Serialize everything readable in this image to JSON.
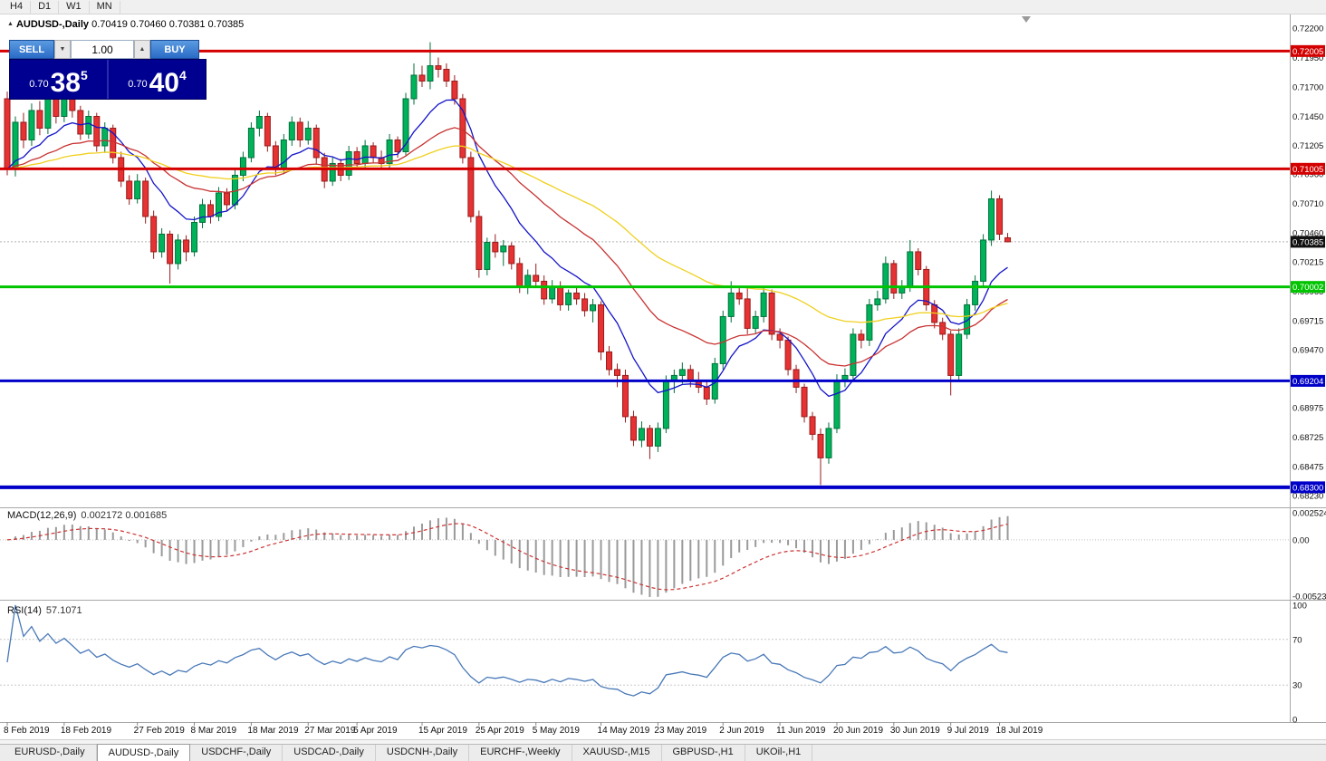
{
  "toolbar": {
    "timeframes": [
      "H4",
      "D1",
      "W1",
      "MN"
    ]
  },
  "chart_header": {
    "symbol": "AUDUSD-,Daily",
    "ohlc": "0.70419 0.70460 0.70381 0.70385"
  },
  "icons": {
    "symbol_marker": "▲",
    "spin_up": "▲",
    "spin_down": "▼",
    "chart_shift_marker": "▼"
  },
  "trade_panel": {
    "sell_label": "SELL",
    "buy_label": "BUY",
    "volume": "1.00",
    "sell_price": {
      "base": "0.70",
      "big": "38",
      "sup": "5"
    },
    "buy_price": {
      "base": "0.70",
      "big": "40",
      "sup": "4"
    },
    "panel_color": "#000090",
    "button_color": "#2a6bc8"
  },
  "indicators": {
    "macd": {
      "label": "MACD(12,26,9)",
      "values": "0.002172 0.001685"
    },
    "rsi": {
      "label": "RSI(14)",
      "value": "57.1071"
    }
  },
  "tabs": [
    {
      "label": "EURUSD-,Daily",
      "active": false
    },
    {
      "label": "AUDUSD-,Daily",
      "active": true
    },
    {
      "label": "USDCHF-,Daily",
      "active": false
    },
    {
      "label": "USDCAD-,Daily",
      "active": false
    },
    {
      "label": "USDCNH-,Daily",
      "active": false
    },
    {
      "label": "EURCHF-,Weekly",
      "active": false
    },
    {
      "label": "XAUUSD-,M15",
      "active": false
    },
    {
      "label": "GBPUSD-,H1",
      "active": false
    },
    {
      "label": "UKOil-,H1",
      "active": false
    }
  ],
  "chart_data": {
    "type": "candlestick",
    "symbol": "AUDUSD-",
    "timeframe": "Daily",
    "current_price": 0.70385,
    "current_price_label": "0.70385",
    "price_axis_labels": [
      "0.72200",
      "0.71950",
      "0.71700",
      "0.71450",
      "0.71205",
      "0.70960",
      "0.70710",
      "0.70460",
      "0.70215",
      "0.69965",
      "0.69715",
      "0.69470",
      "0.69220",
      "0.68975",
      "0.68725",
      "0.68475",
      "0.68230"
    ],
    "hlines": [
      {
        "price": 0.72005,
        "label": "0.72005",
        "color": "#d40000",
        "width": 3
      },
      {
        "price": 0.71005,
        "label": "0.71005",
        "color": "#d40000",
        "width": 3
      },
      {
        "price": 0.70002,
        "label": "0.70002",
        "color": "#00c400",
        "width": 3
      },
      {
        "price": 0.69204,
        "label": "0.69204",
        "color": "#0000c8",
        "width": 3
      },
      {
        "price": 0.683,
        "label": "0.68300",
        "color": "#0000c8",
        "width": 4
      }
    ],
    "candle_colors": {
      "up_fill": "#00b35a",
      "up_stroke": "#00703a",
      "down_fill": "#e63232",
      "down_stroke": "#991b1b"
    },
    "moving_averages": [
      {
        "type": "ema",
        "period": 10,
        "color": "#1414c8"
      },
      {
        "type": "ema",
        "period": 26,
        "color": "#c83232"
      },
      {
        "type": "ema",
        "period": 55,
        "color": "#f0d01e"
      }
    ],
    "marker": {
      "bar": 90,
      "price": 0.6994,
      "glyph": "+",
      "color": "#cc2222"
    },
    "date_ticks": [
      [
        0,
        "8 Feb 2019"
      ],
      [
        7,
        "18 Feb 2019"
      ],
      [
        16,
        "27 Feb 2019"
      ],
      [
        23,
        "8 Mar 2019"
      ],
      [
        30,
        "18 Mar 2019"
      ],
      [
        37,
        "27 Mar 2019"
      ],
      [
        43,
        "5 Apr 2019"
      ],
      [
        51,
        "15 Apr 2019"
      ],
      [
        58,
        "25 Apr 2019"
      ],
      [
        65,
        "5 May 2019"
      ],
      [
        73,
        "14 May 2019"
      ],
      [
        80,
        "23 May 2019"
      ],
      [
        88,
        "2 Jun 2019"
      ],
      [
        95,
        "11 Jun 2019"
      ],
      [
        102,
        "20 Jun 2019"
      ],
      [
        109,
        "30 Jun 2019"
      ],
      [
        116,
        "9 Jul 2019"
      ],
      [
        122,
        "18 Jul 2019"
      ]
    ],
    "candles": [
      [
        0.716,
        0.7166,
        0.7095,
        0.71
      ],
      [
        0.71,
        0.7145,
        0.7094,
        0.714
      ],
      [
        0.714,
        0.7148,
        0.7118,
        0.7125
      ],
      [
        0.7125,
        0.7156,
        0.712,
        0.715
      ],
      [
        0.715,
        0.7158,
        0.7129,
        0.7135
      ],
      [
        0.7135,
        0.7165,
        0.713,
        0.716
      ],
      [
        0.716,
        0.7167,
        0.7139,
        0.7145
      ],
      [
        0.7145,
        0.717,
        0.714,
        0.7165
      ],
      [
        0.7165,
        0.7169,
        0.7144,
        0.715
      ],
      [
        0.715,
        0.7154,
        0.7125,
        0.713
      ],
      [
        0.713,
        0.715,
        0.7126,
        0.7145
      ],
      [
        0.7145,
        0.7148,
        0.7115,
        0.712
      ],
      [
        0.712,
        0.714,
        0.7114,
        0.7135
      ],
      [
        0.7135,
        0.7138,
        0.7105,
        0.711
      ],
      [
        0.711,
        0.7115,
        0.7085,
        0.709
      ],
      [
        0.709,
        0.7095,
        0.707,
        0.7075
      ],
      [
        0.7075,
        0.7096,
        0.7071,
        0.709
      ],
      [
        0.709,
        0.7093,
        0.7054,
        0.706
      ],
      [
        0.706,
        0.7065,
        0.7024,
        0.703
      ],
      [
        0.703,
        0.705,
        0.7025,
        0.7045
      ],
      [
        0.7045,
        0.7048,
        0.7003,
        0.702
      ],
      [
        0.702,
        0.7045,
        0.7015,
        0.704
      ],
      [
        0.704,
        0.7044,
        0.7022,
        0.703
      ],
      [
        0.703,
        0.706,
        0.7026,
        0.7055
      ],
      [
        0.7055,
        0.7075,
        0.705,
        0.707
      ],
      [
        0.707,
        0.7074,
        0.7054,
        0.706
      ],
      [
        0.706,
        0.7085,
        0.7056,
        0.708
      ],
      [
        0.708,
        0.7084,
        0.7065,
        0.707
      ],
      [
        0.707,
        0.71,
        0.7066,
        0.7095
      ],
      [
        0.7095,
        0.7115,
        0.709,
        0.711
      ],
      [
        0.711,
        0.714,
        0.7106,
        0.7135
      ],
      [
        0.7135,
        0.715,
        0.7128,
        0.7145
      ],
      [
        0.7145,
        0.7148,
        0.7115,
        0.712
      ],
      [
        0.712,
        0.7124,
        0.7095,
        0.71
      ],
      [
        0.71,
        0.713,
        0.7096,
        0.7125
      ],
      [
        0.7125,
        0.7145,
        0.712,
        0.714
      ],
      [
        0.714,
        0.7144,
        0.7119,
        0.7125
      ],
      [
        0.7125,
        0.7141,
        0.7121,
        0.7135
      ],
      [
        0.7135,
        0.7138,
        0.7104,
        0.711
      ],
      [
        0.711,
        0.7114,
        0.7084,
        0.709
      ],
      [
        0.709,
        0.711,
        0.7086,
        0.7105
      ],
      [
        0.7105,
        0.7109,
        0.709,
        0.7095
      ],
      [
        0.7095,
        0.712,
        0.7091,
        0.7115
      ],
      [
        0.7115,
        0.7119,
        0.71,
        0.7105
      ],
      [
        0.7105,
        0.7125,
        0.7101,
        0.712
      ],
      [
        0.712,
        0.7123,
        0.7105,
        0.711
      ],
      [
        0.711,
        0.7116,
        0.71,
        0.7105
      ],
      [
        0.7105,
        0.713,
        0.7101,
        0.7125
      ],
      [
        0.7125,
        0.7128,
        0.711,
        0.7115
      ],
      [
        0.7115,
        0.7165,
        0.7112,
        0.716
      ],
      [
        0.716,
        0.719,
        0.7155,
        0.718
      ],
      [
        0.718,
        0.7188,
        0.717,
        0.7175
      ],
      [
        0.7175,
        0.7208,
        0.7168,
        0.7188
      ],
      [
        0.7188,
        0.7195,
        0.7178,
        0.7185
      ],
      [
        0.7185,
        0.719,
        0.717,
        0.7175
      ],
      [
        0.7175,
        0.718,
        0.7155,
        0.716
      ],
      [
        0.716,
        0.7164,
        0.7105,
        0.711
      ],
      [
        0.711,
        0.7115,
        0.7055,
        0.706
      ],
      [
        0.706,
        0.7065,
        0.7008,
        0.7015
      ],
      [
        0.7015,
        0.7042,
        0.701,
        0.7038
      ],
      [
        0.7038,
        0.7045,
        0.7025,
        0.703
      ],
      [
        0.703,
        0.704,
        0.7018,
        0.7035
      ],
      [
        0.7035,
        0.7038,
        0.7015,
        0.702
      ],
      [
        0.702,
        0.7025,
        0.6995,
        0.7
      ],
      [
        0.7,
        0.7015,
        0.6994,
        0.701
      ],
      [
        0.701,
        0.702,
        0.7,
        0.7005
      ],
      [
        0.7005,
        0.701,
        0.6985,
        0.699
      ],
      [
        0.699,
        0.7006,
        0.6986,
        0.7
      ],
      [
        0.7,
        0.7005,
        0.698,
        0.6985
      ],
      [
        0.6985,
        0.6998,
        0.698,
        0.6995
      ],
      [
        0.6995,
        0.7,
        0.6985,
        0.699
      ],
      [
        0.699,
        0.6995,
        0.6975,
        0.698
      ],
      [
        0.698,
        0.699,
        0.697,
        0.6985
      ],
      [
        0.6985,
        0.6988,
        0.6938,
        0.6945
      ],
      [
        0.6945,
        0.695,
        0.6925,
        0.693
      ],
      [
        0.693,
        0.6935,
        0.6915,
        0.6925
      ],
      [
        0.6925,
        0.693,
        0.6885,
        0.689
      ],
      [
        0.689,
        0.6895,
        0.6865,
        0.687
      ],
      [
        0.687,
        0.6886,
        0.6864,
        0.688
      ],
      [
        0.688,
        0.6883,
        0.6854,
        0.6865
      ],
      [
        0.6865,
        0.6885,
        0.686,
        0.688
      ],
      [
        0.688,
        0.6925,
        0.6876,
        0.692
      ],
      [
        0.692,
        0.693,
        0.691,
        0.6925
      ],
      [
        0.6925,
        0.6936,
        0.6918,
        0.693
      ],
      [
        0.693,
        0.6934,
        0.6915,
        0.692
      ],
      [
        0.692,
        0.6928,
        0.691,
        0.6915
      ],
      [
        0.6915,
        0.692,
        0.69,
        0.6905
      ],
      [
        0.6905,
        0.694,
        0.6901,
        0.6935
      ],
      [
        0.6935,
        0.698,
        0.693,
        0.6975
      ],
      [
        0.6975,
        0.7005,
        0.697,
        0.6995
      ],
      [
        0.6995,
        0.7,
        0.6985,
        0.699
      ],
      [
        0.699,
        0.6999,
        0.696,
        0.6965
      ],
      [
        0.6965,
        0.698,
        0.6961,
        0.6975
      ],
      [
        0.6975,
        0.7,
        0.697,
        0.6995
      ],
      [
        0.6995,
        0.6998,
        0.6955,
        0.696
      ],
      [
        0.696,
        0.6965,
        0.6948,
        0.6955
      ],
      [
        0.6955,
        0.6958,
        0.6925,
        0.693
      ],
      [
        0.693,
        0.6934,
        0.691,
        0.6915
      ],
      [
        0.6915,
        0.6918,
        0.6885,
        0.689
      ],
      [
        0.689,
        0.6894,
        0.687,
        0.6875
      ],
      [
        0.6875,
        0.688,
        0.6832,
        0.6855
      ],
      [
        0.6855,
        0.6885,
        0.685,
        0.688
      ],
      [
        0.688,
        0.6926,
        0.6876,
        0.692
      ],
      [
        0.692,
        0.6931,
        0.6915,
        0.6925
      ],
      [
        0.6925,
        0.6965,
        0.692,
        0.696
      ],
      [
        0.696,
        0.6964,
        0.6948,
        0.6955
      ],
      [
        0.6955,
        0.699,
        0.695,
        0.6985
      ],
      [
        0.6985,
        0.6997,
        0.698,
        0.699
      ],
      [
        0.699,
        0.7026,
        0.6986,
        0.702
      ],
      [
        0.702,
        0.7023,
        0.699,
        0.6995
      ],
      [
        0.6995,
        0.7006,
        0.699,
        0.7
      ],
      [
        0.7,
        0.704,
        0.6996,
        0.703
      ],
      [
        0.703,
        0.7033,
        0.701,
        0.7015
      ],
      [
        0.7015,
        0.7018,
        0.698,
        0.6985
      ],
      [
        0.6985,
        0.6989,
        0.6965,
        0.697
      ],
      [
        0.697,
        0.6974,
        0.6955,
        0.696
      ],
      [
        0.696,
        0.6963,
        0.6908,
        0.6925
      ],
      [
        0.6925,
        0.6965,
        0.692,
        0.696
      ],
      [
        0.696,
        0.699,
        0.6956,
        0.6985
      ],
      [
        0.6985,
        0.701,
        0.698,
        0.7005
      ],
      [
        0.7005,
        0.7045,
        0.7,
        0.704
      ],
      [
        0.704,
        0.7082,
        0.7035,
        0.7075
      ],
      [
        0.7075,
        0.7078,
        0.704,
        0.7045
      ],
      [
        0.70419,
        0.7046,
        0.70381,
        0.70385
      ]
    ],
    "macd": {
      "fast": 12,
      "slow": 26,
      "signal": 9,
      "hist_color": "#9a9a9a",
      "signal_color": "#cc3333",
      "axis_ticks": [
        [
          0.002524,
          "0.002524"
        ],
        [
          0,
          "0.00"
        ],
        [
          -0.005234,
          "-0.005234"
        ]
      ]
    },
    "rsi": {
      "period": 14,
      "color": "#4878b8",
      "levels": [
        70,
        30
      ],
      "axis_ticks": [
        [
          100,
          "100"
        ],
        [
          70,
          "70"
        ],
        [
          30,
          "30"
        ],
        [
          0,
          "0"
        ]
      ]
    }
  }
}
